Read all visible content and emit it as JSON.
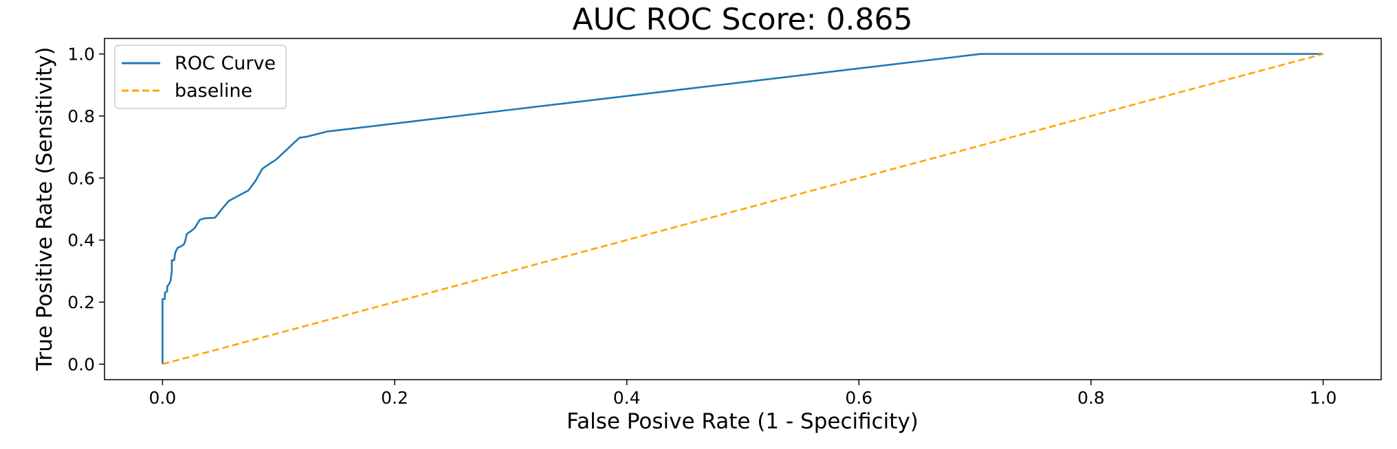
{
  "chart_data": {
    "type": "line",
    "title": "AUC ROC Score: 0.865",
    "xlabel": "False Posive Rate (1 - Specificity)",
    "ylabel": "True Positive Rate (Sensitivity)",
    "xlim": [
      -0.05,
      1.05
    ],
    "ylim": [
      -0.05,
      1.05
    ],
    "xticks": [
      0.0,
      0.2,
      0.4,
      0.6,
      0.8,
      1.0
    ],
    "xtick_labels": [
      "0.0",
      "0.2",
      "0.4",
      "0.6",
      "0.8",
      "1.0"
    ],
    "yticks": [
      0.0,
      0.2,
      0.4,
      0.6,
      0.8,
      1.0
    ],
    "ytick_labels": [
      "0.0",
      "0.2",
      "0.4",
      "0.6",
      "0.8",
      "1.0"
    ],
    "grid": false,
    "legend_position": "top-left",
    "series": [
      {
        "name": "ROC Curve",
        "color": "#1f77b4",
        "style": "solid",
        "x": [
          0.0,
          0.0,
          0.002,
          0.002,
          0.004,
          0.004,
          0.006,
          0.007,
          0.008,
          0.008,
          0.01,
          0.011,
          0.013,
          0.015,
          0.018,
          0.019,
          0.02,
          0.021,
          0.025,
          0.028,
          0.032,
          0.036,
          0.045,
          0.047,
          0.05,
          0.057,
          0.064,
          0.074,
          0.08,
          0.083,
          0.086,
          0.09,
          0.098,
          0.118,
          0.124,
          0.142,
          0.147,
          0.705,
          1.0
        ],
        "y": [
          0.0,
          0.21,
          0.21,
          0.23,
          0.235,
          0.25,
          0.26,
          0.27,
          0.3,
          0.335,
          0.335,
          0.36,
          0.375,
          0.378,
          0.385,
          0.39,
          0.405,
          0.42,
          0.43,
          0.44,
          0.465,
          0.47,
          0.472,
          0.48,
          0.495,
          0.526,
          0.54,
          0.56,
          0.59,
          0.61,
          0.63,
          0.64,
          0.66,
          0.73,
          0.733,
          0.75,
          0.752,
          1.0,
          1.0
        ]
      },
      {
        "name": "baseline",
        "color": "#ffa500",
        "style": "dashed",
        "x": [
          0.0,
          1.0
        ],
        "y": [
          0.0,
          1.0
        ]
      }
    ]
  }
}
